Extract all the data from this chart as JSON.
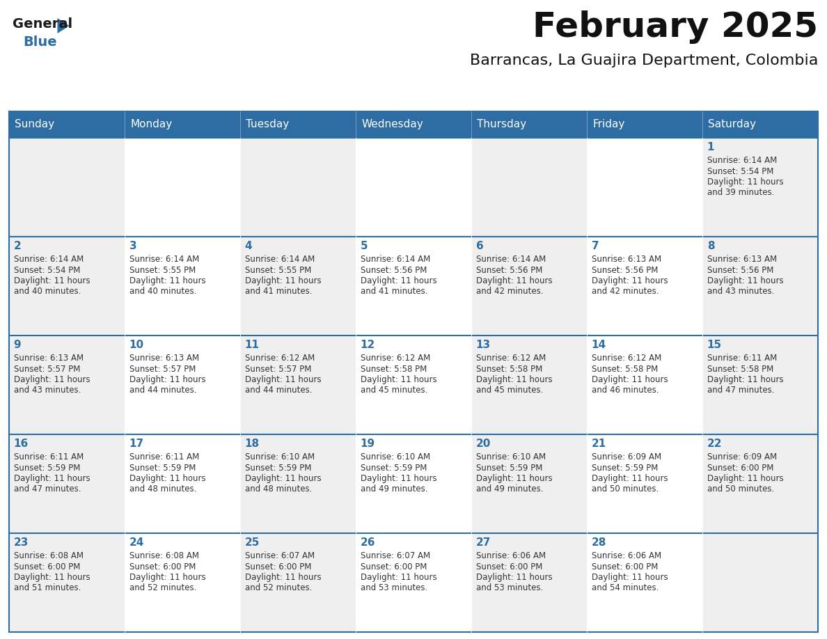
{
  "title": "February 2025",
  "subtitle": "Barrancas, La Guajira Department, Colombia",
  "header_bg": "#2e6da4",
  "header_text": "#ffffff",
  "cell_bg_light": "#efefef",
  "cell_bg_white": "#ffffff",
  "day_text_color": "#2e6da4",
  "info_text_color": "#333333",
  "days_of_week": [
    "Sunday",
    "Monday",
    "Tuesday",
    "Wednesday",
    "Thursday",
    "Friday",
    "Saturday"
  ],
  "calendar": [
    [
      null,
      null,
      null,
      null,
      null,
      null,
      1
    ],
    [
      2,
      3,
      4,
      5,
      6,
      7,
      8
    ],
    [
      9,
      10,
      11,
      12,
      13,
      14,
      15
    ],
    [
      16,
      17,
      18,
      19,
      20,
      21,
      22
    ],
    [
      23,
      24,
      25,
      26,
      27,
      28,
      null
    ]
  ],
  "sunrise": {
    "1": "6:14 AM",
    "2": "6:14 AM",
    "3": "6:14 AM",
    "4": "6:14 AM",
    "5": "6:14 AM",
    "6": "6:14 AM",
    "7": "6:13 AM",
    "8": "6:13 AM",
    "9": "6:13 AM",
    "10": "6:13 AM",
    "11": "6:12 AM",
    "12": "6:12 AM",
    "13": "6:12 AM",
    "14": "6:12 AM",
    "15": "6:11 AM",
    "16": "6:11 AM",
    "17": "6:11 AM",
    "18": "6:10 AM",
    "19": "6:10 AM",
    "20": "6:10 AM",
    "21": "6:09 AM",
    "22": "6:09 AM",
    "23": "6:08 AM",
    "24": "6:08 AM",
    "25": "6:07 AM",
    "26": "6:07 AM",
    "27": "6:06 AM",
    "28": "6:06 AM"
  },
  "sunset": {
    "1": "5:54 PM",
    "2": "5:54 PM",
    "3": "5:55 PM",
    "4": "5:55 PM",
    "5": "5:56 PM",
    "6": "5:56 PM",
    "7": "5:56 PM",
    "8": "5:56 PM",
    "9": "5:57 PM",
    "10": "5:57 PM",
    "11": "5:57 PM",
    "12": "5:58 PM",
    "13": "5:58 PM",
    "14": "5:58 PM",
    "15": "5:58 PM",
    "16": "5:59 PM",
    "17": "5:59 PM",
    "18": "5:59 PM",
    "19": "5:59 PM",
    "20": "5:59 PM",
    "21": "5:59 PM",
    "22": "6:00 PM",
    "23": "6:00 PM",
    "24": "6:00 PM",
    "25": "6:00 PM",
    "26": "6:00 PM",
    "27": "6:00 PM",
    "28": "6:00 PM"
  },
  "daylight": {
    "1": [
      "11 hours",
      "and 39 minutes."
    ],
    "2": [
      "11 hours",
      "and 40 minutes."
    ],
    "3": [
      "11 hours",
      "and 40 minutes."
    ],
    "4": [
      "11 hours",
      "and 41 minutes."
    ],
    "5": [
      "11 hours",
      "and 41 minutes."
    ],
    "6": [
      "11 hours",
      "and 42 minutes."
    ],
    "7": [
      "11 hours",
      "and 42 minutes."
    ],
    "8": [
      "11 hours",
      "and 43 minutes."
    ],
    "9": [
      "11 hours",
      "and 43 minutes."
    ],
    "10": [
      "11 hours",
      "and 44 minutes."
    ],
    "11": [
      "11 hours",
      "and 44 minutes."
    ],
    "12": [
      "11 hours",
      "and 45 minutes."
    ],
    "13": [
      "11 hours",
      "and 45 minutes."
    ],
    "14": [
      "11 hours",
      "and 46 minutes."
    ],
    "15": [
      "11 hours",
      "and 47 minutes."
    ],
    "16": [
      "11 hours",
      "and 47 minutes."
    ],
    "17": [
      "11 hours",
      "and 48 minutes."
    ],
    "18": [
      "11 hours",
      "and 48 minutes."
    ],
    "19": [
      "11 hours",
      "and 49 minutes."
    ],
    "20": [
      "11 hours",
      "and 49 minutes."
    ],
    "21": [
      "11 hours",
      "and 50 minutes."
    ],
    "22": [
      "11 hours",
      "and 50 minutes."
    ],
    "23": [
      "11 hours",
      "and 51 minutes."
    ],
    "24": [
      "11 hours",
      "and 52 minutes."
    ],
    "25": [
      "11 hours",
      "and 52 minutes."
    ],
    "26": [
      "11 hours",
      "and 53 minutes."
    ],
    "27": [
      "11 hours",
      "and 53 minutes."
    ],
    "28": [
      "11 hours",
      "and 54 minutes."
    ]
  },
  "logo_general_color": "#1a1a1a",
  "logo_blue_color": "#2e6da4",
  "logo_triangle_color": "#2e6da4",
  "border_color": "#2e6da4",
  "title_fontsize": 36,
  "subtitle_fontsize": 16,
  "header_fontsize": 11,
  "day_number_fontsize": 11,
  "info_fontsize": 8.5
}
